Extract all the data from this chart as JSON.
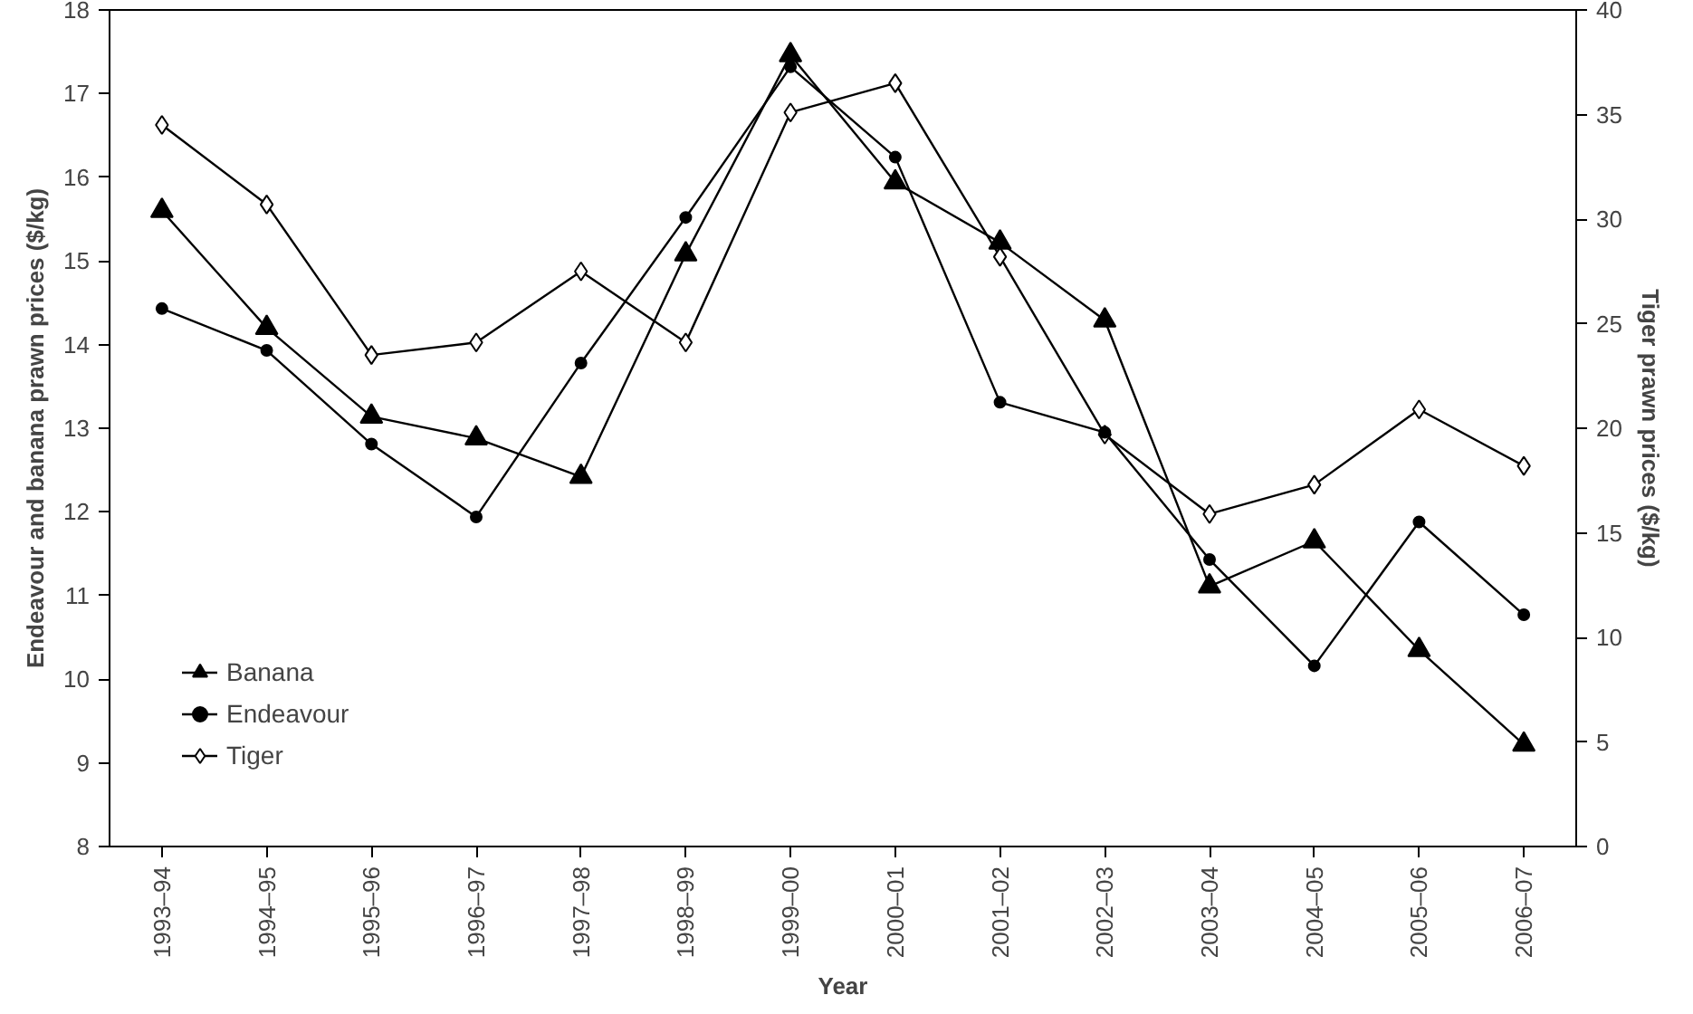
{
  "chart_data": {
    "type": "line",
    "xlabel": "Year",
    "ylabel": "Endeavour and banana prawn prices ($/kg)",
    "y2label": "Tiger prawn prices ($/kg)",
    "categories": [
      "1993–94",
      "1994–95",
      "1995–96",
      "1996–97",
      "1997–98",
      "1998–99",
      "1999–00",
      "2000–01",
      "2001–02",
      "2002–03",
      "2003–04",
      "2004–05",
      "2005–06",
      "2006–07"
    ],
    "series": [
      {
        "name": "Banana",
        "color": "#000000",
        "marker": "triangle",
        "values": [
          15.6,
          14.2,
          13.14,
          12.88,
          12.42,
          15.08,
          17.46,
          15.94,
          15.22,
          14.29,
          11.11,
          11.65,
          10.35,
          9.22
        ]
      },
      {
        "name": "Endeavour",
        "color": "#000000",
        "marker": "circle",
        "values": [
          14.43,
          13.93,
          12.81,
          11.94,
          13.78,
          15.52,
          17.32,
          16.24,
          13.31,
          12.95,
          11.43,
          10.16,
          11.88,
          10.77
        ]
      },
      {
        "name": "Tiger",
        "color": "#000000",
        "marker": "diamond",
        "axis": "y2",
        "values": [
          34.5,
          30.7,
          23.5,
          24.1,
          27.5,
          24.1,
          35.1,
          36.5,
          28.2,
          19.7,
          15.9,
          17.3,
          20.9,
          18.2
        ]
      }
    ],
    "ylim": [
      8,
      18
    ],
    "yticks": [
      8,
      9,
      10,
      11,
      12,
      13,
      14,
      15,
      16,
      17,
      18
    ],
    "y2lim": [
      0,
      40
    ],
    "y2ticks": [
      0,
      5,
      10,
      15,
      20,
      25,
      30,
      35,
      40
    ],
    "grid": false,
    "legend": "bottom left",
    "line_style": "solid"
  }
}
